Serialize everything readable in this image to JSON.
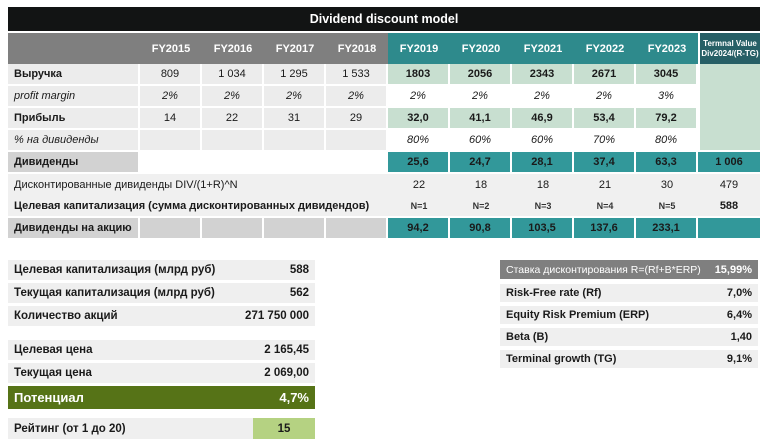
{
  "title": "Dividend discount model",
  "colors": {
    "title_bg": "#121414",
    "header_gray": "#7f7f7f",
    "header_teal": "#2e8a8c",
    "terminal_header_teal": "#275f66",
    "data_teal": "#32989a",
    "light_green": "#c8dfd0",
    "olive_green": "#567317",
    "rating_green": "#b5d282"
  },
  "table": {
    "year_headers": [
      "FY2015",
      "FY2016",
      "FY2017",
      "FY2018",
      "FY2019",
      "FY2020",
      "FY2021",
      "FY2022",
      "FY2023"
    ],
    "terminal_header": [
      "Termnal Value",
      "Div2024/(R-TG)"
    ],
    "rows": [
      {
        "label": "Выручка",
        "values": [
          "809",
          "1 034",
          "1 295",
          "1 533",
          "1803",
          "2056",
          "2343",
          "2671",
          "3045"
        ],
        "terminal": ""
      },
      {
        "label": "profit margin",
        "values": [
          "2%",
          "2%",
          "2%",
          "2%",
          "2%",
          "2%",
          "2%",
          "2%",
          "3%"
        ],
        "terminal": ""
      },
      {
        "label": "Прибыль",
        "values": [
          "14",
          "22",
          "31",
          "29",
          "32,0",
          "41,1",
          "46,9",
          "53,4",
          "79,2"
        ],
        "terminal": ""
      },
      {
        "label": "% на дивиденды",
        "values": [
          "",
          "",
          "",
          "",
          "80%",
          "60%",
          "60%",
          "70%",
          "80%"
        ],
        "terminal": ""
      },
      {
        "label": "Дивиденды",
        "values": [
          "",
          "",
          "",
          "",
          "25,6",
          "24,7",
          "28,1",
          "37,4",
          "63,3"
        ],
        "terminal": "1 006"
      },
      {
        "label": "Дисконтированные дивиденды DIV/(1+R)^N",
        "values": [
          "22",
          "18",
          "18",
          "21",
          "30"
        ],
        "terminal": "479"
      },
      {
        "label": "Целевая капитализация (сумма дисконтированных дивидендов)",
        "values": [
          "N=1",
          "N=2",
          "N=3",
          "N=4",
          "N=5"
        ],
        "terminal": "588"
      },
      {
        "label": "Дивиденды на акцию",
        "values": [
          "",
          "",
          "",
          "",
          "94,2",
          "90,8",
          "103,5",
          "137,6",
          "233,1"
        ],
        "terminal": ""
      }
    ]
  },
  "summary_caps": [
    {
      "label": "Целевая капитализация (млрд руб)",
      "value": "588"
    },
    {
      "label": "Текущая капитализация (млрд руб)",
      "value": "562"
    },
    {
      "label": "Количество акций",
      "value": "271 750 000"
    }
  ],
  "summary_price": [
    {
      "label": "Целевая цена",
      "value": "2 165,45"
    },
    {
      "label": "Текущая цена",
      "value": "2 069,00"
    }
  ],
  "potential": {
    "label": "Потенциал",
    "value": "4,7%"
  },
  "rating": {
    "label": "Рейтинг (от 1 до 20)",
    "value": "15"
  },
  "discount": {
    "header": {
      "label": "Ставка дисконтирования R=(Rf+B*ERP)",
      "value": "15,99%"
    },
    "rows": [
      {
        "label": "Risk-Free rate (Rf)",
        "value": "7,0%"
      },
      {
        "label": "Equity Risk Premium (ERP)",
        "value": "6,4%"
      },
      {
        "label": "Beta (B)",
        "value": "1,40"
      },
      {
        "label": "Terminal growth (TG)",
        "value": "9,1%"
      }
    ]
  }
}
